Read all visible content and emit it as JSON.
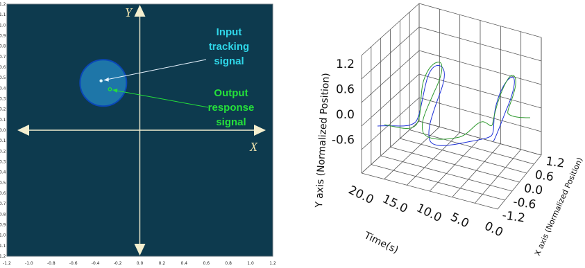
{
  "chart_data": [
    {
      "type": "scatter",
      "xlim": [
        -1.2,
        1.2
      ],
      "ylim": [
        -1.2,
        1.2
      ],
      "x_ticks": [
        "-1.2",
        "-1.0",
        "-0.8",
        "-0.6",
        "-0.4",
        "-0.2",
        "0.0",
        "0.2",
        "0.4",
        "0.6",
        "0.8",
        "1.0",
        "1.2"
      ],
      "y_ticks": [
        "1.2",
        "1.1",
        "1.0",
        "0.9",
        "0.8",
        "0.7",
        "0.6",
        "0.5",
        "0.4",
        "0.3",
        "0.2",
        "0.1",
        "0.0",
        "-0.1",
        "-0.2",
        "-0.3",
        "-0.4",
        "-0.5",
        "-0.6",
        "-0.7",
        "-0.8",
        "-0.9",
        "-1.0",
        "-1.1",
        "-1.2"
      ],
      "axis_x_label": "X",
      "axis_y_label": "Y",
      "target_circle": {
        "cx": -0.33,
        "cy": 0.45,
        "r": 0.21
      },
      "input_point": {
        "x": -0.35,
        "y": 0.47
      },
      "output_point": {
        "x": -0.27,
        "y": 0.39
      },
      "annotations": {
        "input": [
          "Input",
          "tracking",
          "signal"
        ],
        "output": [
          "Output",
          "response",
          "signal"
        ]
      },
      "colors": {
        "background": "#0d3a4e",
        "circle": "#1e76a8",
        "circle_edge": "#0a47b8",
        "input": "#2fd6e8",
        "output": "#25e03a",
        "axis": "#f4efcf"
      }
    },
    {
      "type": "line",
      "dimensions": 3,
      "time_ticks": [
        "20.0",
        "15.0",
        "10.0",
        "5.0",
        "0.0"
      ],
      "time_label": "Time(s)",
      "y_ticks": [
        "1.2",
        "0.6",
        "0.0",
        "-0.6"
      ],
      "y_label": "Y axis (Normalized Position)",
      "x_ticks": [
        "1.2",
        "0.6",
        "0.0",
        "-0.6",
        "-1.2"
      ],
      "x_label": "X axis (Normalized Position)",
      "series": [
        {
          "color": "#1c2fd6"
        },
        {
          "color": "#2f9a2f"
        }
      ],
      "grid": true
    }
  ]
}
